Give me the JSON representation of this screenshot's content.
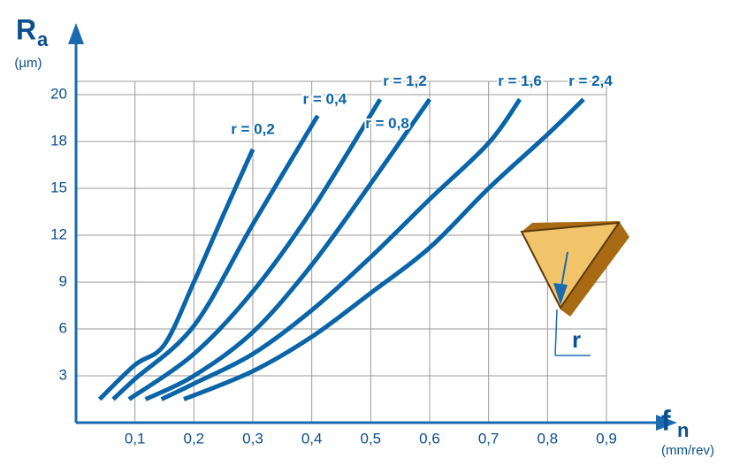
{
  "chart_data": {
    "type": "line",
    "y_label": "R",
    "y_label_sub": "a",
    "y_unit": "(µm)",
    "x_label": "f",
    "x_label_sub": "n",
    "x_unit": "(mm/rev)",
    "inset_label": "r",
    "xlim": [
      0,
      0.9
    ],
    "xticks": [
      {
        "value": 0.1,
        "label": "0,1"
      },
      {
        "value": 0.2,
        "label": "0,2"
      },
      {
        "value": 0.3,
        "label": "0,3"
      },
      {
        "value": 0.4,
        "label": "0,4"
      },
      {
        "value": 0.5,
        "label": "0,5"
      },
      {
        "value": 0.6,
        "label": "0,6"
      },
      {
        "value": 0.7,
        "label": "0,7"
      },
      {
        "value": 0.8,
        "label": "0,8"
      },
      {
        "value": 0.9,
        "label": "0,9"
      }
    ],
    "ylim": [
      0,
      20
    ],
    "yticks": [
      3,
      6,
      9,
      12,
      15,
      18,
      20
    ],
    "grid": true,
    "series": [
      {
        "name": "r = 0,2",
        "color": "#0a64a8",
        "x": [
          0.04,
          0.1,
          0.15,
          0.2,
          0.25,
          0.3
        ],
        "values": [
          1.5,
          3.7,
          5.0,
          9.0,
          13.3,
          17.5
        ]
      },
      {
        "name": "r = 0,4",
        "color": "#0a64a8",
        "x": [
          0.063,
          0.1,
          0.2,
          0.3,
          0.41
        ],
        "values": [
          1.5,
          2.8,
          6.2,
          12.7,
          19.1
        ]
      },
      {
        "name": "r = 0,8",
        "color": "#0a64a8",
        "x": [
          0.09,
          0.2,
          0.3,
          0.4,
          0.516
        ],
        "values": [
          1.5,
          4.4,
          8.4,
          13.6,
          19.8
        ]
      },
      {
        "name": "r = 1,2",
        "color": "#0a64a8",
        "x": [
          0.118,
          0.2,
          0.3,
          0.4,
          0.5,
          0.6
        ],
        "values": [
          1.5,
          3.0,
          5.8,
          10.1,
          15.3,
          19.8
        ]
      },
      {
        "name": "r = 1,6",
        "color": "#0a64a8",
        "x": [
          0.145,
          0.2,
          0.3,
          0.4,
          0.5,
          0.6,
          0.7,
          0.753
        ],
        "values": [
          1.5,
          2.5,
          4.4,
          7.2,
          10.6,
          14.3,
          17.9,
          19.8
        ]
      },
      {
        "name": "r = 2,4",
        "color": "#0a64a8",
        "x": [
          0.183,
          0.3,
          0.4,
          0.5,
          0.6,
          0.7,
          0.8,
          0.861
        ],
        "values": [
          1.5,
          3.3,
          5.5,
          8.3,
          11.2,
          15.0,
          18.3,
          19.8
        ]
      }
    ]
  }
}
